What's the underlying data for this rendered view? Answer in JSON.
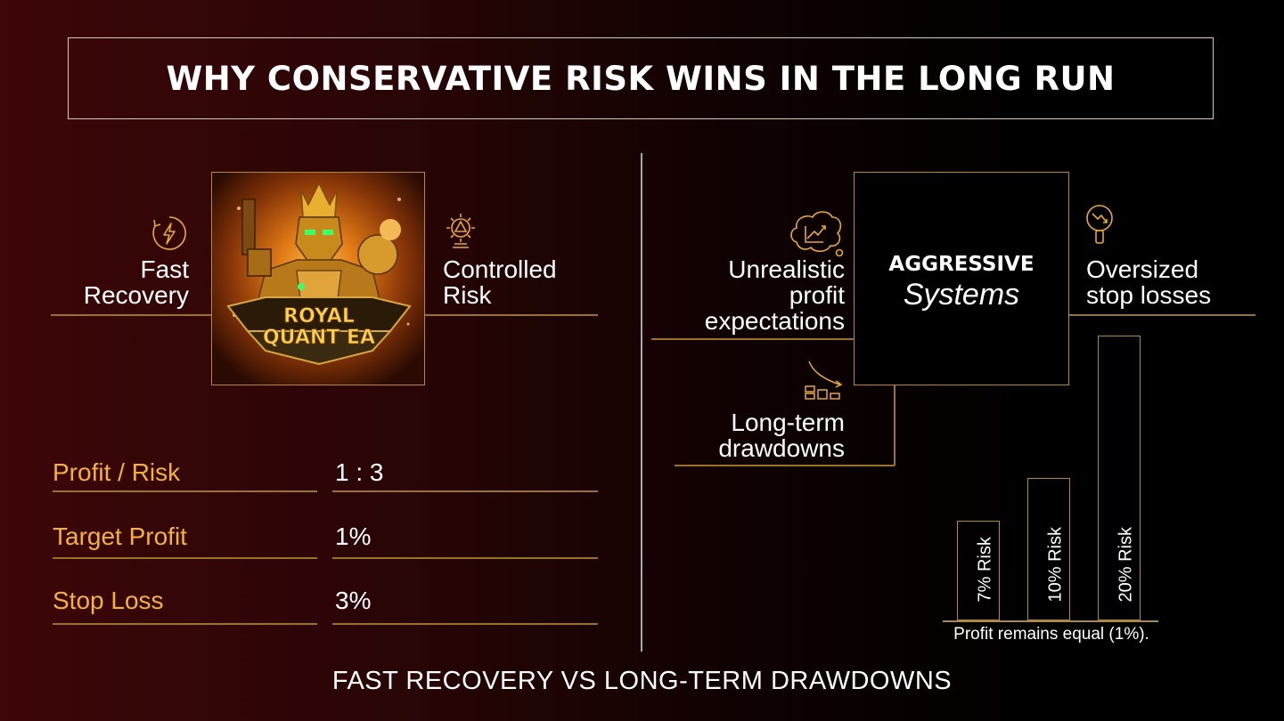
{
  "title": "WHY CONSERVATIVE RISK WINS IN THE LONG RUN",
  "left": {
    "feature_1": {
      "line1": "Fast",
      "line2": "Recovery",
      "icon": "lightning-cycle-icon"
    },
    "feature_2": {
      "line1": "Controlled",
      "line2": "Risk",
      "icon": "gear-alert-icon"
    },
    "logo": {
      "line1": "ROYAL",
      "line2": "QUANT EA"
    },
    "rows": [
      {
        "label": "Profit / Risk",
        "value": "1 : 3"
      },
      {
        "label": "Target Profit",
        "value": "1%"
      },
      {
        "label": "Stop Loss",
        "value": "3%"
      }
    ]
  },
  "right": {
    "center": {
      "line1": "AGGRESSIVE",
      "line2": "Systems"
    },
    "point_1": {
      "line1": "Unrealistic",
      "line2": "profit",
      "line3": "expectations",
      "icon": "thought-chart-icon"
    },
    "point_2": {
      "line1": "Oversized",
      "line2": "stop losses",
      "icon": "magnifier-downtrend-icon"
    },
    "point_3": {
      "line1": "Long-term",
      "line2": "drawdowns",
      "icon": "bars-arrow-icon"
    }
  },
  "chart_data": {
    "type": "bar",
    "categories": [
      "7% Risk",
      "10% Risk",
      "20% Risk"
    ],
    "values": [
      7,
      10,
      20
    ],
    "note": "Profit remains equal (1%).",
    "bar_color": "#b8892c"
  },
  "footer": "FAST RECOVERY VS LONG-TERM DRAWDOWNS",
  "colors": {
    "accent": "#f3b23a",
    "line": "#9a7424"
  }
}
